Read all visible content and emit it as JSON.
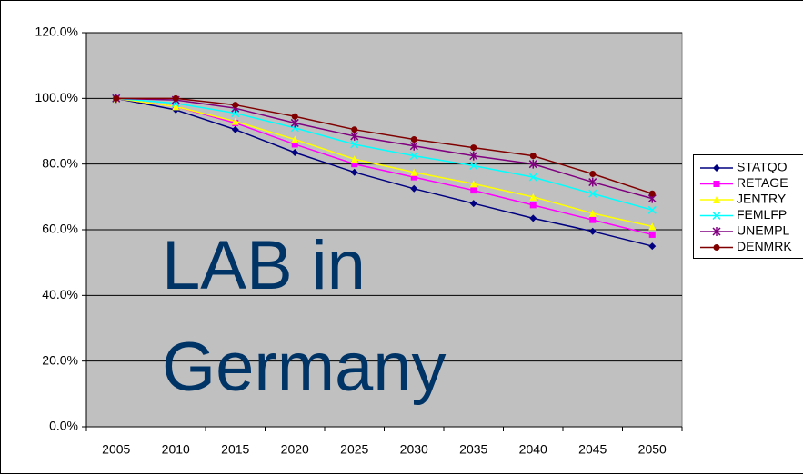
{
  "chart_data": {
    "type": "line",
    "annotations": [
      "LAB in",
      "Germany"
    ],
    "categories": [
      "2005",
      "2010",
      "2015",
      "2020",
      "2025",
      "2030",
      "2035",
      "2040",
      "2045",
      "2050"
    ],
    "series": [
      {
        "name": "STATQO",
        "color": "#000080",
        "marker": "diamond",
        "values": [
          100,
          96.5,
          90.5,
          83.5,
          77.5,
          72.5,
          68,
          63.5,
          59.5,
          55
        ]
      },
      {
        "name": "RETAGE",
        "color": "#ff00ff",
        "marker": "square",
        "values": [
          100,
          97.5,
          92.5,
          86,
          80,
          76,
          72,
          67.5,
          63,
          58.5
        ]
      },
      {
        "name": "JENTRY",
        "color": "#ffff00",
        "marker": "triangle",
        "values": [
          100,
          97.5,
          93,
          87.5,
          81.5,
          77.5,
          74,
          70,
          65,
          61
        ]
      },
      {
        "name": "FEMLFP",
        "color": "#00ffff",
        "marker": "x",
        "values": [
          100,
          98.5,
          95.5,
          91,
          86,
          82.5,
          79.5,
          76,
          71,
          66
        ]
      },
      {
        "name": "UNEMPL",
        "color": "#800080",
        "marker": "star",
        "values": [
          100,
          99.5,
          97,
          92.5,
          88.5,
          85.5,
          82.5,
          80,
          74.5,
          69.5
        ]
      },
      {
        "name": "DENMRK",
        "color": "#800000",
        "marker": "circle",
        "values": [
          100,
          100,
          98,
          94.5,
          90.5,
          87.5,
          85,
          82.5,
          77,
          71
        ]
      }
    ],
    "ylim": [
      0,
      120
    ],
    "yticks": [
      {
        "value": 0,
        "label": "0.0%"
      },
      {
        "value": 20,
        "label": "20.0%"
      },
      {
        "value": 40,
        "label": "40.0%"
      },
      {
        "value": 60,
        "label": "60.0%"
      },
      {
        "value": 80,
        "label": "80.0%"
      },
      {
        "value": 100,
        "label": "100.0%"
      },
      {
        "value": 120,
        "label": "120.0%"
      }
    ],
    "grid": true,
    "legend": "right",
    "plot_color": "#c0c0c0",
    "annotation_color": "#003366"
  }
}
